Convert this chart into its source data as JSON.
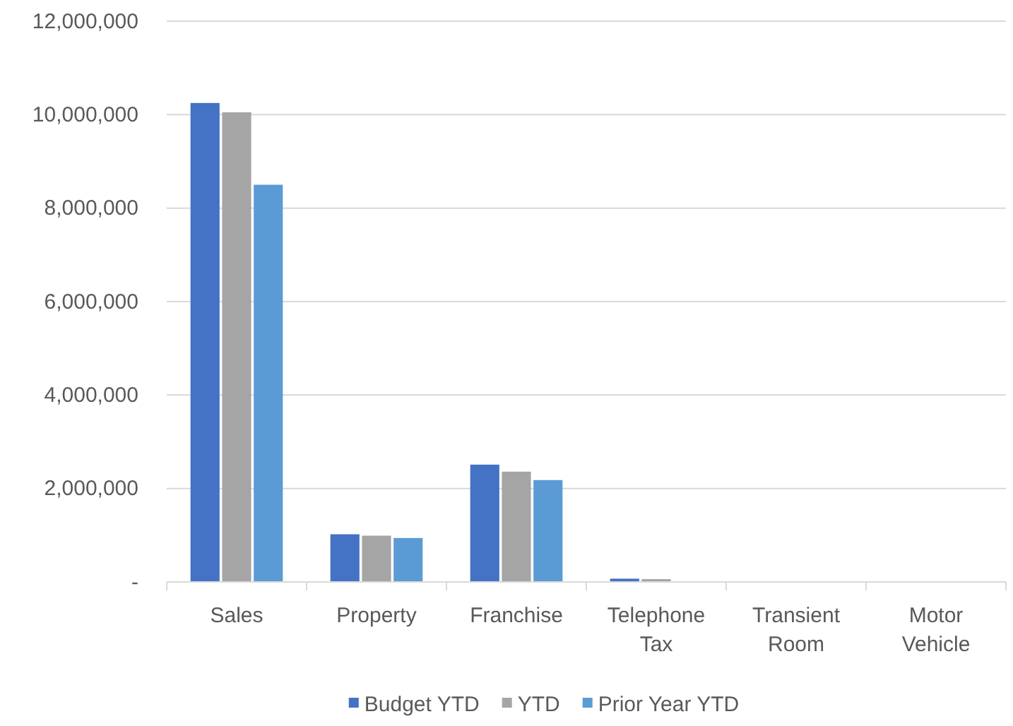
{
  "chart_data": {
    "type": "bar",
    "categories": [
      "Sales",
      "Property",
      "Franchise",
      "Telephone Tax",
      "Transient Room",
      "Motor Vehicle"
    ],
    "series": [
      {
        "name": "Budget YTD",
        "color": "#4472c4",
        "values": [
          10250000,
          1020000,
          2510000,
          70000,
          0,
          0
        ]
      },
      {
        "name": "YTD",
        "color": "#a5a5a5",
        "values": [
          10050000,
          990000,
          2360000,
          60000,
          0,
          0
        ]
      },
      {
        "name": "Prior Year YTD",
        "color": "#5b9bd5",
        "values": [
          8500000,
          940000,
          2180000,
          0,
          0,
          0
        ]
      }
    ],
    "ylim": [
      0,
      12000000
    ],
    "yticks": [
      {
        "value": 0,
        "label": "-"
      },
      {
        "value": 2000000,
        "label": "2,000,000"
      },
      {
        "value": 4000000,
        "label": "4,000,000"
      },
      {
        "value": 6000000,
        "label": "6,000,000"
      },
      {
        "value": 8000000,
        "label": "8,000,000"
      },
      {
        "value": 10000000,
        "label": "10,000,000"
      },
      {
        "value": 12000000,
        "label": "12,000,000"
      }
    ],
    "grid": "y",
    "legend": "bottom"
  }
}
